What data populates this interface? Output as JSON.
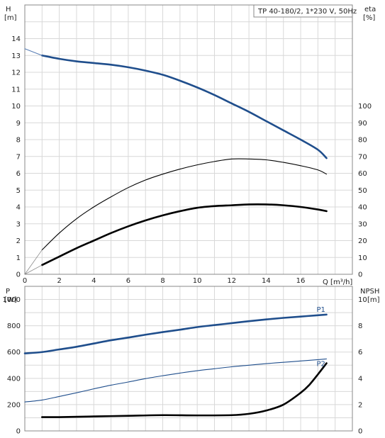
{
  "chart_data": [
    {
      "type": "line",
      "title": "TP 40-180/2, 1*230 V, 50Hz",
      "ylabel_left": "H",
      "ylabel_left_unit": "[m]",
      "ylabel_right": "eta",
      "ylabel_right_unit": "[%]",
      "xlabel": "Q [m³/h]",
      "xlim": [
        0,
        19
      ],
      "ylim_left": [
        0,
        16
      ],
      "ylim_right": [
        0,
        160
      ],
      "x_ticks": [
        0,
        2,
        4,
        6,
        8,
        10,
        12,
        14,
        16
      ],
      "y_ticks_left": [
        0,
        1,
        2,
        3,
        4,
        5,
        6,
        7,
        8,
        9,
        10,
        11,
        12,
        13,
        14
      ],
      "y_ticks_right": [
        0,
        10,
        20,
        30,
        40,
        50,
        60,
        70,
        80,
        90,
        100
      ],
      "grid": true,
      "series": [
        {
          "name": "",
          "axis": "left",
          "color": "#1f4e8c",
          "style": "thick",
          "x": [
            1.0,
            2,
            3,
            4,
            5,
            6,
            7,
            8,
            9,
            10,
            11,
            12,
            13,
            14,
            15,
            16,
            17,
            17.5
          ],
          "y": [
            13.0,
            12.8,
            12.65,
            12.55,
            12.45,
            12.3,
            12.1,
            11.85,
            11.5,
            11.1,
            10.65,
            10.15,
            9.65,
            9.1,
            8.55,
            8.0,
            7.4,
            6.9
          ]
        },
        {
          "name": "",
          "axis": "left",
          "color": "#5a7fb5",
          "style": "thin",
          "x": [
            0,
            1.0
          ],
          "y": [
            13.4,
            13.0
          ]
        },
        {
          "name": "",
          "axis": "right",
          "color": "#000000",
          "style": "thin",
          "x": [
            1.0,
            2,
            3,
            4,
            5,
            6,
            7,
            8,
            9,
            10,
            11,
            12,
            13,
            14,
            15,
            16,
            17,
            17.5
          ],
          "y": [
            14.5,
            24.5,
            33,
            40,
            46,
            51.5,
            56,
            59.5,
            62.5,
            65,
            67,
            68.5,
            68.5,
            68,
            66.5,
            64.5,
            62,
            59.5
          ]
        },
        {
          "name": "",
          "axis": "right",
          "color": "#000000",
          "style": "thick",
          "x": [
            1.0,
            2,
            3,
            4,
            5,
            6,
            7,
            8,
            9,
            10,
            11,
            12,
            13,
            14,
            15,
            16,
            17,
            17.5
          ],
          "y": [
            5.5,
            10.5,
            15.5,
            20,
            24.5,
            28.5,
            32,
            35,
            37.5,
            39.5,
            40.5,
            41,
            41.5,
            41.5,
            41,
            40,
            38.5,
            37.5
          ]
        }
      ]
    },
    {
      "type": "line",
      "ylabel_left": "P",
      "ylabel_left_unit": "[W]",
      "ylabel_right": "NPSH",
      "ylabel_right_unit": "[m]",
      "xlim": [
        0,
        19
      ],
      "ylim_left": [
        0,
        1100
      ],
      "ylim_right": [
        0,
        11
      ],
      "y_ticks_left": [
        0,
        200,
        400,
        600,
        800,
        1000
      ],
      "y_ticks_right": [
        0,
        2,
        4,
        6,
        8,
        10
      ],
      "grid": true,
      "annotations": [
        "P1",
        "P2"
      ],
      "series": [
        {
          "name": "P1",
          "axis": "left",
          "color": "#1f4e8c",
          "style": "thick",
          "x": [
            0,
            1.0,
            2,
            3,
            4,
            5,
            6,
            7,
            8,
            9,
            10,
            11,
            12,
            13,
            14,
            15,
            16,
            17,
            17.5
          ],
          "y": [
            590,
            600,
            620,
            640,
            665,
            690,
            710,
            732,
            752,
            770,
            790,
            805,
            820,
            835,
            848,
            860,
            870,
            880,
            885
          ]
        },
        {
          "name": "P2",
          "axis": "left",
          "color": "#1f4e8c",
          "style": "thin",
          "x": [
            0,
            1.0,
            2,
            3,
            4,
            5,
            6,
            7,
            8,
            9,
            10,
            11,
            12,
            13,
            14,
            15,
            16,
            17,
            17.5
          ],
          "y": [
            220,
            235,
            262,
            290,
            320,
            348,
            372,
            398,
            420,
            440,
            458,
            473,
            488,
            500,
            512,
            522,
            532,
            542,
            548
          ]
        },
        {
          "name": "",
          "axis": "right",
          "color": "#000000",
          "style": "thick",
          "x": [
            1.0,
            2,
            4,
            6,
            8,
            10,
            12,
            13,
            14,
            15,
            16,
            16.5,
            17,
            17.5
          ],
          "y": [
            1.05,
            1.05,
            1.1,
            1.15,
            1.2,
            1.18,
            1.2,
            1.3,
            1.55,
            2.0,
            2.9,
            3.5,
            4.3,
            5.15
          ]
        }
      ]
    }
  ]
}
